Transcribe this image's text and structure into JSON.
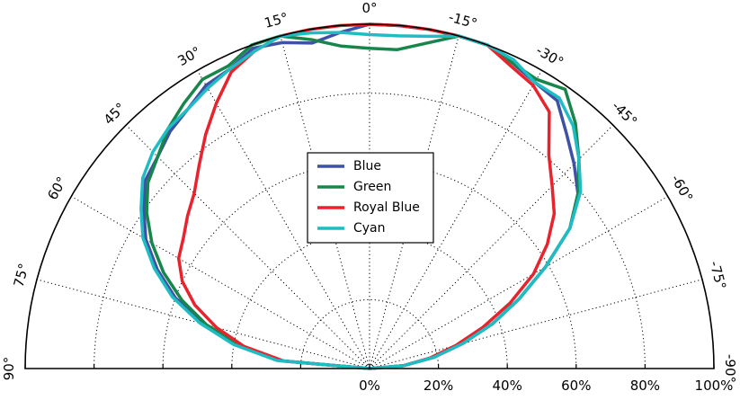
{
  "chart_data": {
    "type": "polar-line",
    "title": "",
    "radial_unit": "%",
    "radial_ticks": [
      "0%",
      "20%",
      "40%",
      "60%",
      "80%",
      "100%"
    ],
    "radial_range": [
      0,
      100
    ],
    "angle_ticks": [
      "90°",
      "75°",
      "60°",
      "45°",
      "30°",
      "15°",
      "0°",
      "-15°",
      "-30°",
      "-45°",
      "-60°",
      "-75°",
      "-90°"
    ],
    "angle_range": [
      -90,
      90
    ],
    "grid": true,
    "legend_position": "center",
    "angles": [
      -90,
      -85,
      -80,
      -75,
      -70,
      -65,
      -60,
      -55,
      -50,
      -45,
      -40,
      -35,
      -30,
      -25,
      -20,
      -15,
      -10,
      -5,
      0,
      5,
      10,
      15,
      20,
      25,
      30,
      35,
      40,
      45,
      50,
      55,
      60,
      65,
      70,
      75,
      80,
      85,
      90
    ],
    "series": [
      {
        "name": "Blue",
        "color": "#3f51a5",
        "values": [
          0,
          10,
          19,
          28,
          38,
          48,
          59,
          71,
          79,
          84,
          89,
          95,
          96,
          98,
          100,
          100,
          100,
          100,
          100,
          98,
          96,
          98,
          99,
          96,
          95,
          92,
          90,
          87,
          85,
          80,
          75,
          68,
          60,
          50,
          39,
          26,
          0
        ]
      },
      {
        "name": "Green",
        "color": "#18864b",
        "values": [
          0,
          10,
          19,
          28,
          38,
          48,
          59,
          71,
          79,
          86,
          93,
          99,
          97,
          98,
          100,
          100,
          96,
          93,
          93,
          94,
          97,
          100,
          100,
          97,
          97,
          94,
          91,
          87,
          84,
          79,
          73,
          66,
          58,
          49,
          38,
          26,
          0
        ]
      },
      {
        "name": "Royal Blue",
        "color": "#e8232d",
        "values": [
          0,
          10,
          18,
          26,
          35,
          45,
          55,
          63,
          70,
          75,
          81,
          91,
          95,
          97,
          100,
          100,
          100,
          100,
          100,
          100,
          100,
          100,
          98,
          95,
          89,
          83,
          77,
          72,
          69,
          66,
          64,
          60,
          54,
          46,
          37,
          25,
          0
        ]
      },
      {
        "name": "Cyan",
        "color": "#1fbcc4",
        "values": [
          0,
          10,
          19,
          28,
          38,
          48,
          59,
          71,
          80,
          86,
          92,
          96,
          96,
          99,
          100,
          100,
          98,
          97,
          97,
          98,
          99,
          100,
          98,
          96,
          94,
          92,
          91,
          89,
          86,
          81,
          76,
          69,
          61,
          51,
          40,
          27,
          0
        ]
      }
    ]
  }
}
